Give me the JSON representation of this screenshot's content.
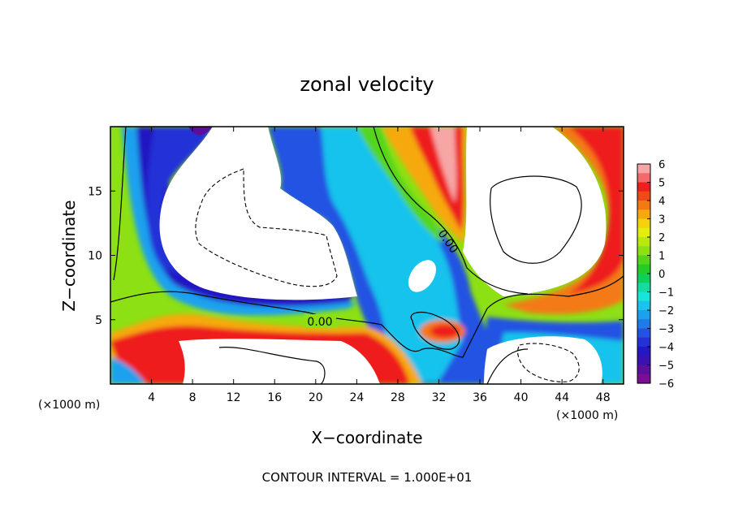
{
  "chart_data": {
    "type": "heatmap",
    "title": "zonal velocity",
    "xlabel": "X−coordinate",
    "ylabel": "Z−coordinate",
    "x_units_left": "(×1000 m)",
    "x_units_right": "(×1000 m)",
    "xlim": [
      0,
      50
    ],
    "ylim": [
      0,
      20
    ],
    "x_ticks": [
      4,
      8,
      12,
      16,
      20,
      24,
      28,
      32,
      36,
      40,
      44,
      48
    ],
    "y_ticks": [
      5,
      10,
      15
    ],
    "colorbar": {
      "range": [
        -6,
        6
      ],
      "ticks": [
        "6",
        "5",
        "4",
        "3",
        "2",
        "1",
        "0",
        "−1",
        "−2",
        "−3",
        "−4",
        "−5",
        "−6"
      ],
      "colors": [
        "#f7a6a6",
        "#f46a6a",
        "#ee1f1f",
        "#f04a18",
        "#f37a12",
        "#f6a90f",
        "#f4d20d",
        "#e2ef0c",
        "#b9e90c",
        "#8ce014",
        "#55d51a",
        "#23cc26",
        "#10d05a",
        "#14dca0",
        "#19e4d9",
        "#19c3ec",
        "#1ca1ee",
        "#207be9",
        "#2253e2",
        "#2331d7",
        "#2318c3",
        "#3a12b0",
        "#5b0f9e",
        "#7a0f93"
      ]
    },
    "contour_labels": [
      "0.00",
      "0.00"
    ],
    "footer": "CONTOUR INTERVAL = 1.000E+01",
    "undefined_regions": "white (values outside ±6)"
  }
}
